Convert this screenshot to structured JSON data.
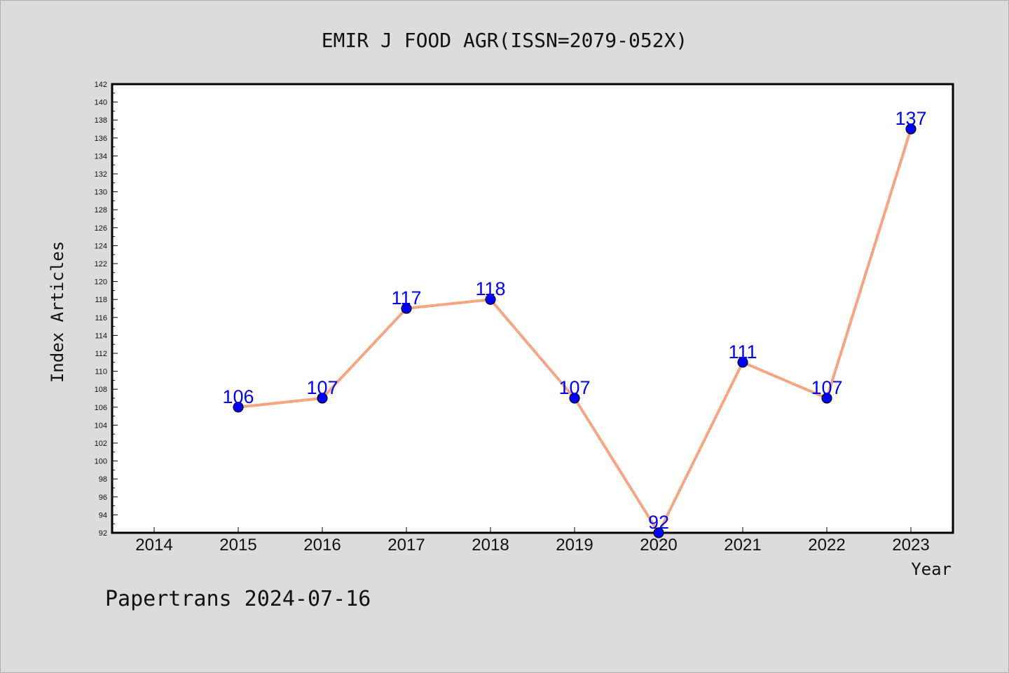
{
  "chart_data": {
    "type": "line",
    "title": "EMIR J FOOD AGR(ISSN=2079-052X)",
    "xlabel": "Year",
    "ylabel": "Index Articles",
    "categories": [
      "2014",
      "2015",
      "2016",
      "2017",
      "2018",
      "2019",
      "2020",
      "2021",
      "2022",
      "2023"
    ],
    "x": [
      2015,
      2016,
      2017,
      2018,
      2019,
      2020,
      2021,
      2022,
      2023
    ],
    "series": [
      {
        "values": [
          106,
          107,
          117,
          118,
          107,
          92,
          111,
          107,
          137
        ]
      }
    ],
    "ylim": [
      92,
      142
    ],
    "ytick_step": 2,
    "grid": false,
    "colors": {
      "line": "#f4a582",
      "marker": "#0000ff",
      "label": "#0000ee",
      "background": "#dcdcdc",
      "plot": "#ffffff"
    }
  },
  "footer": "Papertrans 2024-07-16"
}
